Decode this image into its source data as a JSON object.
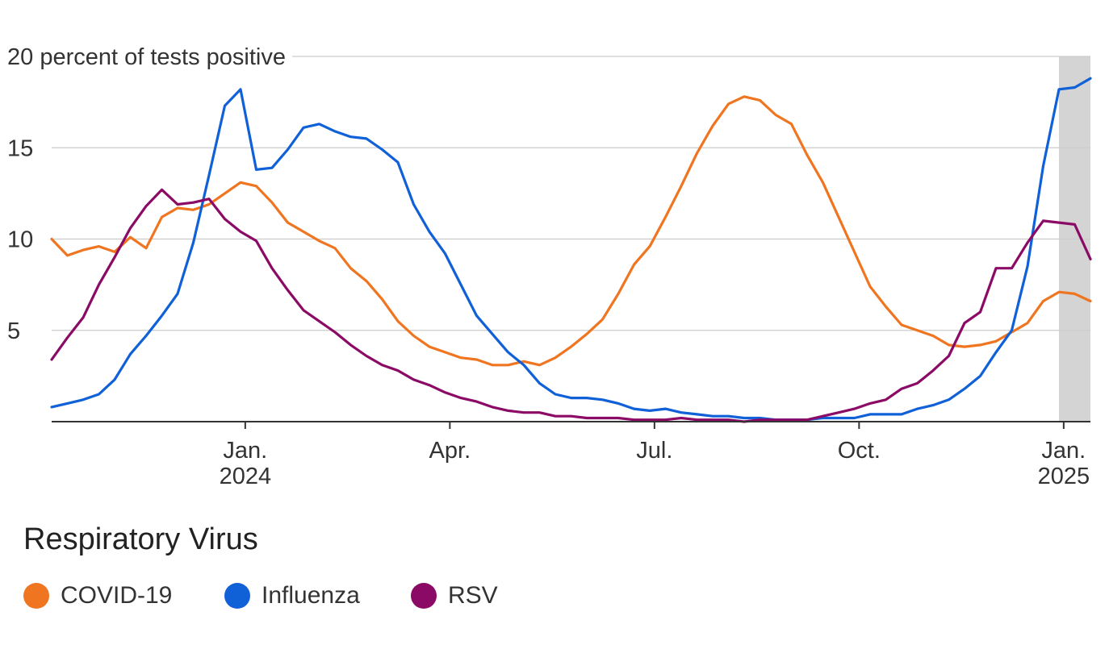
{
  "chart_data": {
    "type": "line",
    "y_unit_label": "20 percent of tests positive",
    "yticks": [
      5,
      10,
      15
    ],
    "ylim": [
      0,
      20
    ],
    "grid": true,
    "x_labels": [
      {
        "week": 12.3,
        "lines": [
          "Jan.",
          "2024"
        ]
      },
      {
        "week": 25.3,
        "lines": [
          "Apr."
        ]
      },
      {
        "week": 38.3,
        "lines": [
          "Jul."
        ]
      },
      {
        "week": 51.3,
        "lines": [
          "Oct."
        ]
      },
      {
        "week": 64.3,
        "lines": [
          "Jan.",
          "2025"
        ]
      }
    ],
    "x_start": "2023-10-07",
    "x_interval": "weekly",
    "shaded_range": [
      64.0,
      66.0
    ],
    "legend_title": "Respiratory Virus",
    "series": [
      {
        "name": "COVID-19",
        "color": "#f07520",
        "values": [
          10.0,
          9.1,
          9.4,
          9.6,
          9.3,
          10.1,
          9.5,
          11.2,
          11.7,
          11.6,
          11.9,
          12.5,
          13.1,
          12.9,
          12.0,
          10.9,
          10.4,
          9.9,
          9.5,
          8.4,
          7.7,
          6.7,
          5.5,
          4.7,
          4.1,
          3.8,
          3.5,
          3.4,
          3.1,
          3.1,
          3.3,
          3.1,
          3.5,
          4.1,
          4.8,
          5.6,
          7.0,
          8.6,
          9.6,
          11.2,
          12.9,
          14.7,
          16.2,
          17.4,
          17.8,
          17.6,
          16.8,
          16.3,
          14.6,
          13.1,
          11.2,
          9.3,
          7.4,
          6.3,
          5.3,
          5.0,
          4.7,
          4.2,
          4.1,
          4.2,
          4.4,
          4.9,
          5.4,
          6.6,
          7.1,
          7.0,
          6.6
        ]
      },
      {
        "name": "Influenza",
        "color": "#1060d8",
        "values": [
          0.8,
          1.0,
          1.2,
          1.5,
          2.3,
          3.7,
          4.7,
          5.8,
          7.0,
          9.8,
          13.5,
          17.3,
          18.2,
          13.8,
          13.9,
          14.9,
          16.1,
          16.3,
          15.9,
          15.6,
          15.5,
          14.9,
          14.2,
          11.9,
          10.4,
          9.2,
          7.5,
          5.8,
          4.8,
          3.8,
          3.1,
          2.1,
          1.5,
          1.3,
          1.3,
          1.2,
          1.0,
          0.7,
          0.6,
          0.7,
          0.5,
          0.4,
          0.3,
          0.3,
          0.2,
          0.2,
          0.1,
          0.1,
          0.1,
          0.2,
          0.2,
          0.2,
          0.4,
          0.4,
          0.4,
          0.7,
          0.9,
          1.2,
          1.8,
          2.5,
          3.8,
          5.0,
          8.5,
          14.0,
          18.2,
          18.3,
          18.8
        ]
      },
      {
        "name": "RSV",
        "color": "#8b0a66",
        "values": [
          3.4,
          4.6,
          5.7,
          7.5,
          9.0,
          10.6,
          11.8,
          12.7,
          11.9,
          12.0,
          12.2,
          11.1,
          10.4,
          9.9,
          8.4,
          7.2,
          6.1,
          5.5,
          4.9,
          4.2,
          3.6,
          3.1,
          2.8,
          2.3,
          2.0,
          1.6,
          1.3,
          1.1,
          0.8,
          0.6,
          0.5,
          0.5,
          0.3,
          0.3,
          0.2,
          0.2,
          0.2,
          0.1,
          0.1,
          0.1,
          0.2,
          0.1,
          0.1,
          0.1,
          0.0,
          0.1,
          0.1,
          0.1,
          0.1,
          0.3,
          0.5,
          0.7,
          1.0,
          1.2,
          1.8,
          2.1,
          2.8,
          3.6,
          5.4,
          6.0,
          8.4,
          8.4,
          9.8,
          11.0,
          10.9,
          10.8,
          8.9
        ]
      }
    ]
  }
}
